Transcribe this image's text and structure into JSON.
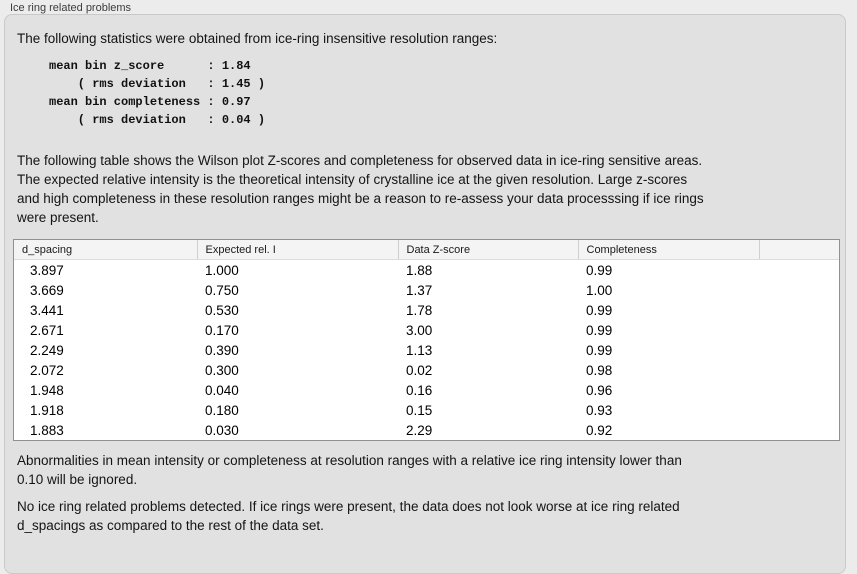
{
  "panel": {
    "title": "Ice ring related problems"
  },
  "intro": {
    "text": "The following statistics were obtained from ice-ring insensitive resolution ranges:"
  },
  "stats_block": {
    "text": "mean bin z_score      : 1.84\n    ( rms deviation   : 1.45 )\nmean bin completeness : 0.97\n    ( rms deviation   : 0.04 )",
    "values": {
      "mean_bin_z_score": "1.84",
      "z_score_rms_deviation": "1.45",
      "mean_bin_completeness": "0.97",
      "completeness_rms_deviation": "0.04"
    }
  },
  "table_description": {
    "text": "The following table shows the Wilson plot Z-scores and completeness for observed data in ice-ring sensitive areas.\nThe expected relative intensity is the theoretical intensity of crystalline ice at the given resolution. Large z-scores\nand high completeness in these resolution ranges might be a reason to re-assess your data processsing if ice rings\nwere present."
  },
  "table": {
    "columns": [
      "d_spacing",
      "Expected rel. I",
      "Data Z-score",
      "Completeness"
    ],
    "rows": [
      [
        "3.897",
        "1.000",
        "1.88",
        "0.99"
      ],
      [
        "3.669",
        "0.750",
        "1.37",
        "1.00"
      ],
      [
        "3.441",
        "0.530",
        "1.78",
        "0.99"
      ],
      [
        "2.671",
        "0.170",
        "3.00",
        "0.99"
      ],
      [
        "2.249",
        "0.390",
        "1.13",
        "0.99"
      ],
      [
        "2.072",
        "0.300",
        "0.02",
        "0.98"
      ],
      [
        "1.948",
        "0.040",
        "0.16",
        "0.96"
      ],
      [
        "1.918",
        "0.180",
        "0.15",
        "0.93"
      ],
      [
        "1.883",
        "0.030",
        "2.29",
        "0.92"
      ]
    ]
  },
  "notes": {
    "ignore_note": "Abnormalities in mean intensity or completeness at resolution ranges with a relative ice ring intensity lower than\n0.10 will be ignored.",
    "conclusion": "No ice ring related problems detected. If ice rings were present, the data does not look worse at ice ring related\nd_spacings as compared to the rest of the data set."
  },
  "colors": {
    "page_background": "#ececec",
    "group_box_background": "#e1e1e1",
    "group_box_border": "#c9c9c9",
    "table_background": "#ffffff",
    "table_border": "#919191",
    "table_header_background": "#f4f4f4",
    "text": "#141414"
  }
}
